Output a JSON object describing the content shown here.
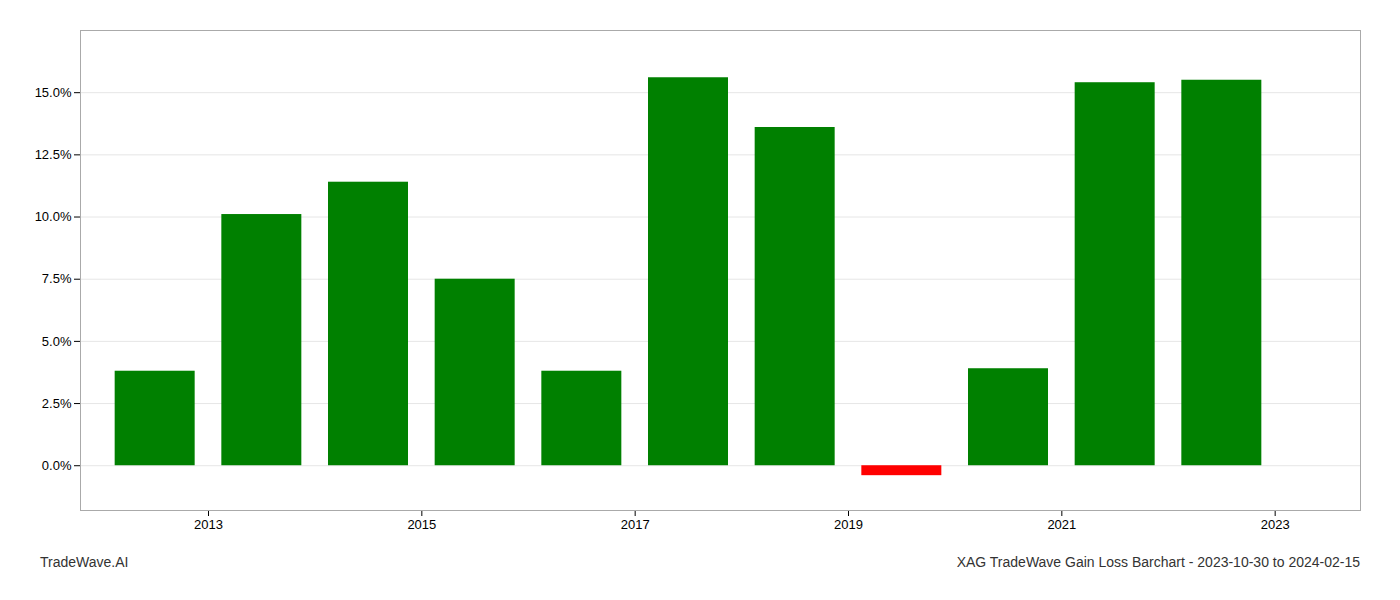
{
  "chart_data": {
    "type": "bar",
    "x": [
      2012.5,
      2013.5,
      2014.5,
      2015.5,
      2016.5,
      2017.5,
      2018.5,
      2019.5,
      2020.5,
      2021.5,
      2022.5
    ],
    "values": [
      0.038,
      0.101,
      0.114,
      0.075,
      0.038,
      0.156,
      0.136,
      -0.004,
      0.039,
      0.154,
      0.155
    ],
    "colors": [
      "#008000",
      "#008000",
      "#008000",
      "#008000",
      "#008000",
      "#008000",
      "#008000",
      "#ff0000",
      "#008000",
      "#008000",
      "#008000"
    ],
    "xlim": [
      2011.8,
      2023.8
    ],
    "xticks": [
      2013,
      2015,
      2017,
      2019,
      2021,
      2023
    ],
    "ylim": [
      -0.018,
      0.175
    ],
    "yticks": [
      {
        "value": 0.0,
        "label": "0.0%"
      },
      {
        "value": 0.025,
        "label": "2.5%"
      },
      {
        "value": 0.05,
        "label": "5.0%"
      },
      {
        "value": 0.075,
        "label": "7.5%"
      },
      {
        "value": 0.1,
        "label": "10.0%"
      },
      {
        "value": 0.125,
        "label": "12.5%"
      },
      {
        "value": 0.15,
        "label": "15.0%"
      }
    ],
    "grid": true,
    "annotations": [
      "TradeWave.AI",
      "XAG TradeWave Gain Loss Barchart - 2023-10-30 to 2024-02-15"
    ]
  }
}
